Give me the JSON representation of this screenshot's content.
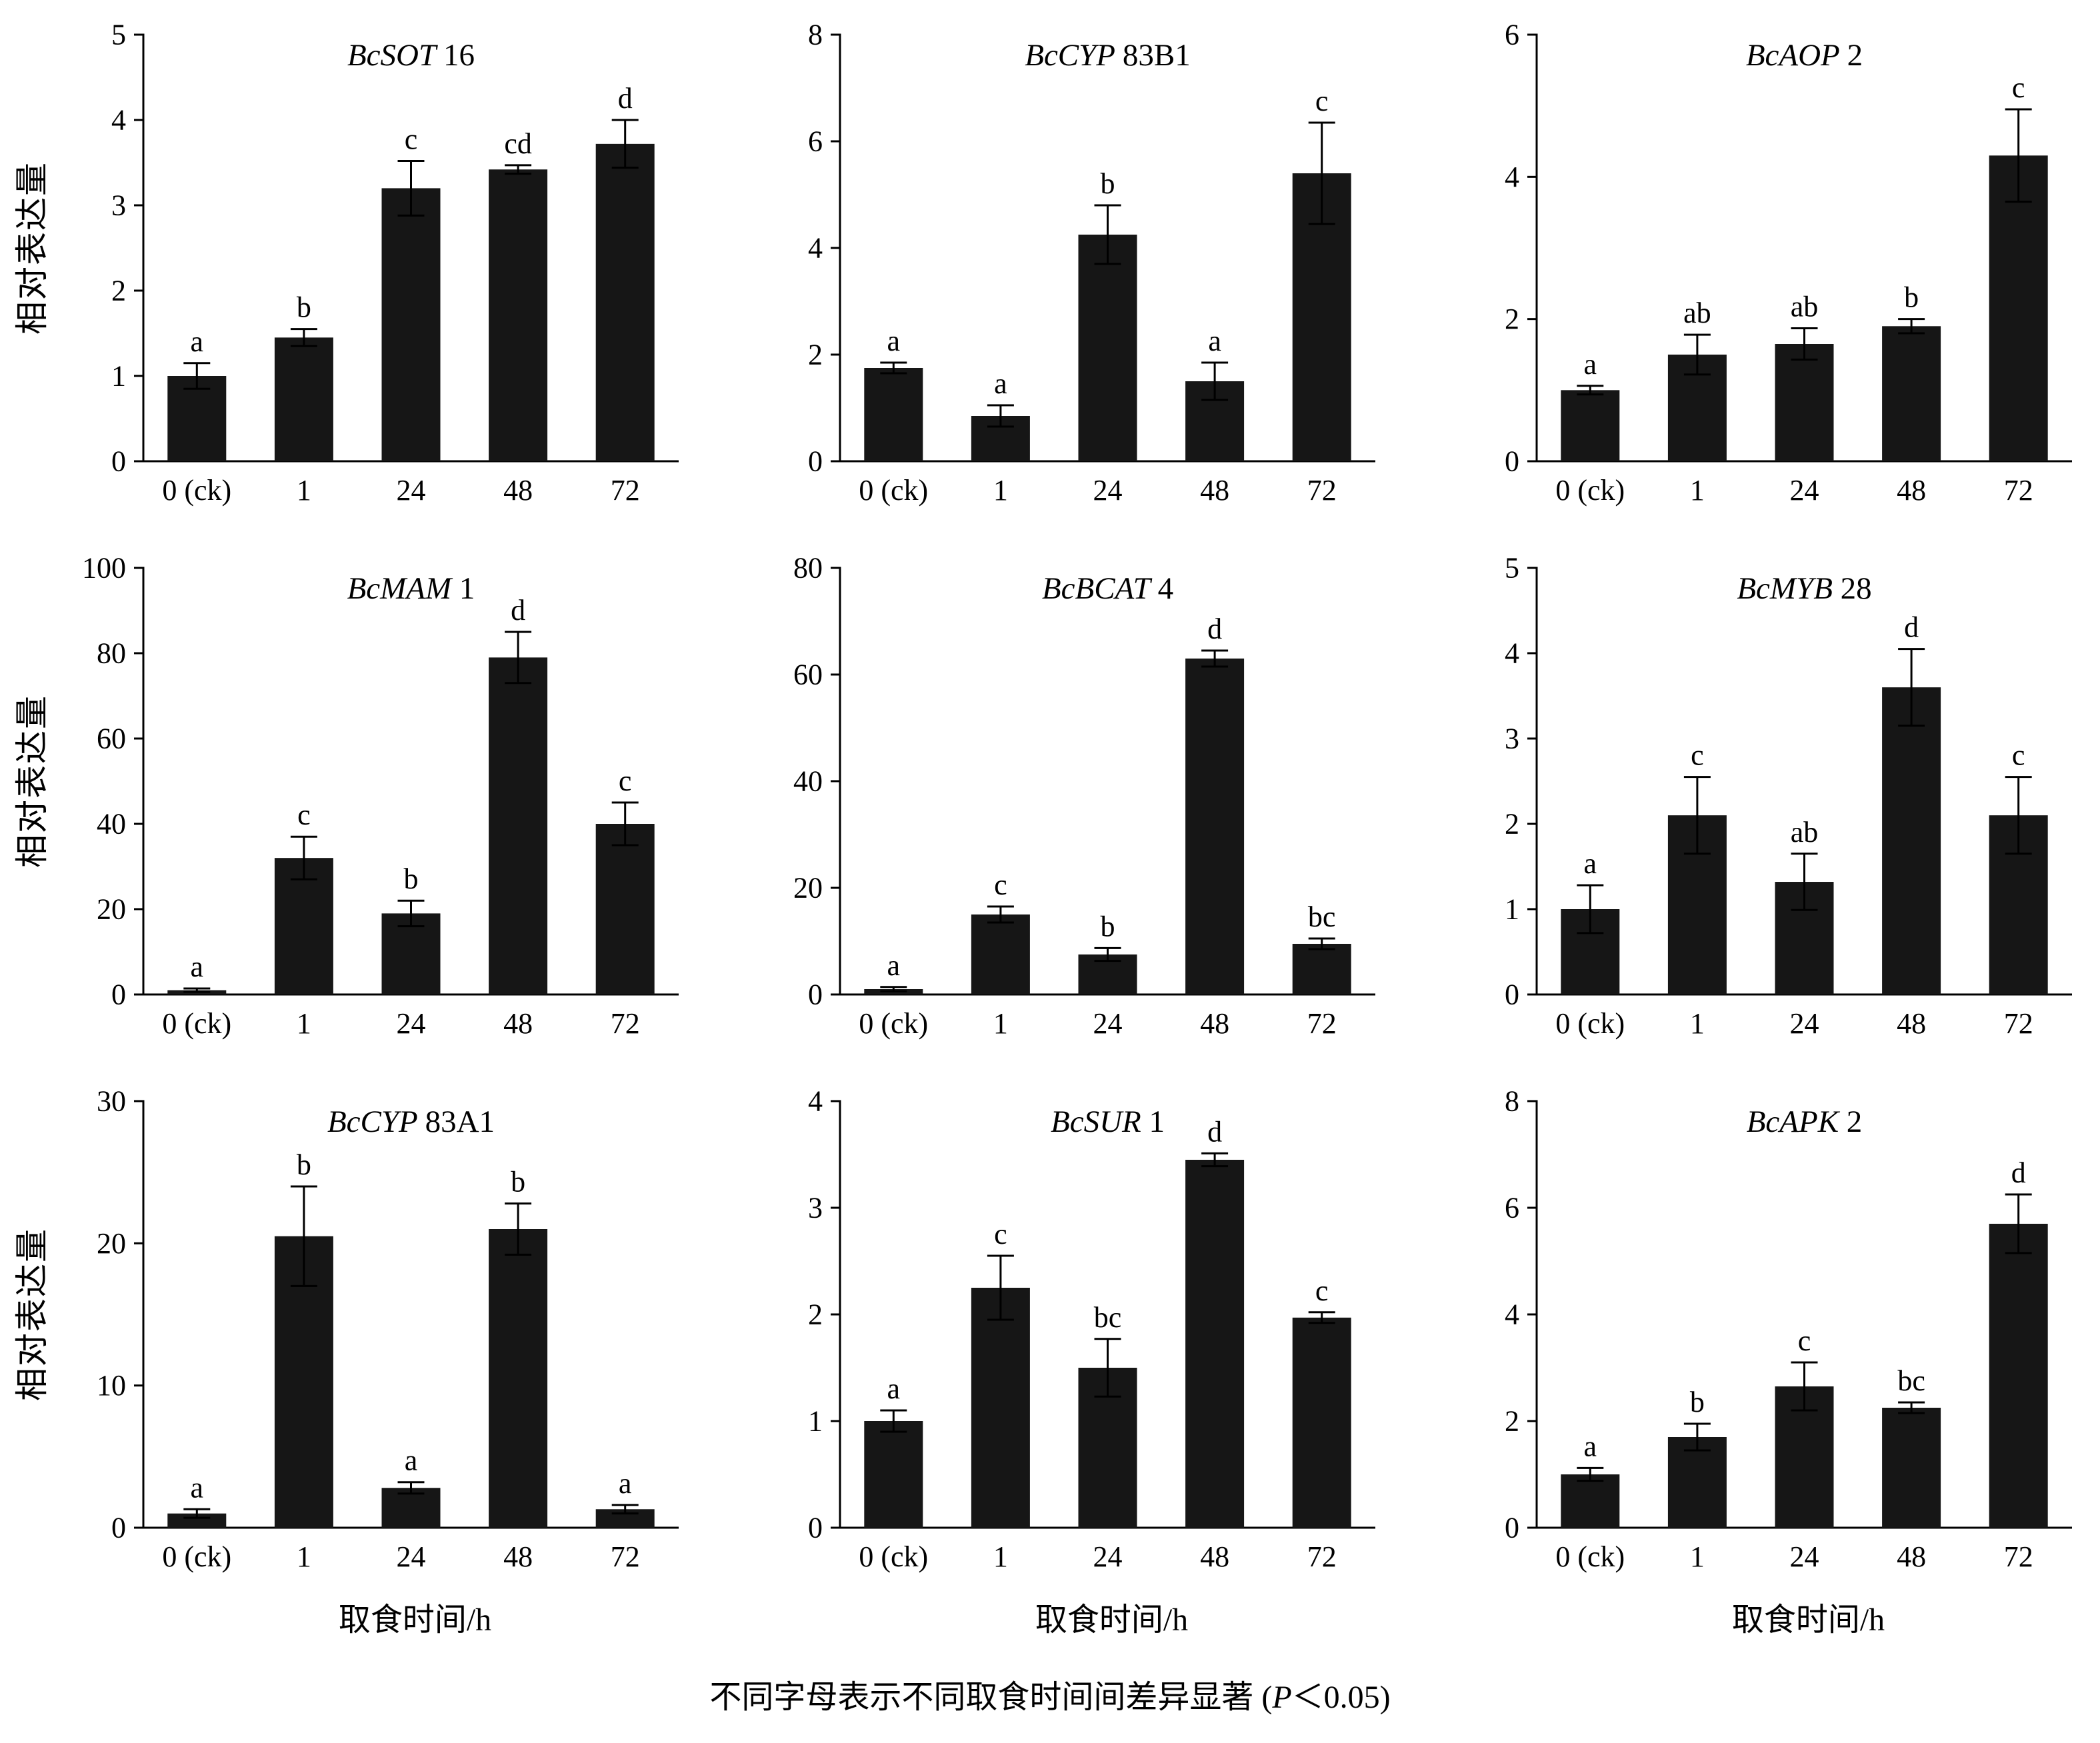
{
  "figure": {
    "ylabel": "相对表达量",
    "xlabel": "取食时间/h",
    "caption": {
      "prefix": "不同字母表示不同取食时间间差异显著 (",
      "p": "P",
      "suffix": "＜0.05)"
    }
  },
  "chart_data": {
    "type": "bar",
    "categories": [
      "0 (ck)",
      "1",
      "24",
      "48",
      "72"
    ],
    "bar_color": "#161616",
    "grid": "off",
    "error_bars": true,
    "shared_xlabel": "取食时间/h",
    "shared_ylabel": "相对表达量",
    "charts": [
      {
        "title": "BcSOT 16",
        "gene": "BcSOT",
        "num": "16",
        "ylim": [
          0,
          5
        ],
        "yticks": [
          0,
          1,
          2,
          3,
          4,
          5
        ],
        "values": [
          1.0,
          1.45,
          3.2,
          3.42,
          3.72
        ],
        "errors": [
          0.15,
          0.1,
          0.32,
          0.05,
          0.28
        ],
        "letters": [
          "a",
          "b",
          "c",
          "cd",
          "d"
        ]
      },
      {
        "title": "BcCYP 83B1",
        "gene": "BcCYP",
        "num": "83B1",
        "ylim": [
          0,
          8
        ],
        "yticks": [
          0,
          2,
          4,
          6,
          8
        ],
        "values": [
          1.75,
          0.85,
          4.25,
          1.5,
          5.4
        ],
        "errors": [
          0.1,
          0.2,
          0.55,
          0.35,
          0.95
        ],
        "letters": [
          "a",
          "a",
          "b",
          "a",
          "c"
        ]
      },
      {
        "title": "BcAOP 2",
        "gene": "BcAOP",
        "num": "2",
        "ylim": [
          0,
          6
        ],
        "yticks": [
          0,
          2,
          4,
          6
        ],
        "values": [
          1.0,
          1.5,
          1.65,
          1.9,
          4.3
        ],
        "errors": [
          0.06,
          0.28,
          0.22,
          0.1,
          0.65
        ],
        "letters": [
          "a",
          "ab",
          "ab",
          "b",
          "c"
        ]
      },
      {
        "title": "BcMAM 1",
        "gene": "BcMAM",
        "num": "1",
        "ylim": [
          0,
          100
        ],
        "yticks": [
          0,
          20,
          40,
          60,
          80,
          100
        ],
        "values": [
          1,
          32,
          19,
          79,
          40
        ],
        "errors": [
          0.4,
          5,
          3,
          6,
          5
        ],
        "letters": [
          "a",
          "c",
          "b",
          "d",
          "c"
        ]
      },
      {
        "title": "BcBCAT 4",
        "gene": "BcBCAT",
        "num": "4",
        "ylim": [
          0,
          80
        ],
        "yticks": [
          0,
          20,
          40,
          60,
          80
        ],
        "values": [
          1,
          15,
          7.5,
          63,
          9.5
        ],
        "errors": [
          0.4,
          1.5,
          1.2,
          1.5,
          1.0
        ],
        "letters": [
          "a",
          "c",
          "b",
          "d",
          "bc"
        ]
      },
      {
        "title": "BcMYB 28",
        "gene": "BcMYB",
        "num": "28",
        "ylim": [
          0,
          5
        ],
        "yticks": [
          0,
          1,
          2,
          3,
          4,
          5
        ],
        "values": [
          1.0,
          2.1,
          1.32,
          3.6,
          2.1
        ],
        "errors": [
          0.28,
          0.45,
          0.33,
          0.45,
          0.45
        ],
        "letters": [
          "a",
          "c",
          "ab",
          "d",
          "c"
        ]
      },
      {
        "title": "BcCYP 83A1",
        "gene": "BcCYP",
        "num": "83A1",
        "ylim": [
          0,
          30
        ],
        "yticks": [
          0,
          10,
          20,
          30
        ],
        "values": [
          1,
          20.5,
          2.8,
          21,
          1.3
        ],
        "errors": [
          0.3,
          3.5,
          0.4,
          1.8,
          0.3
        ],
        "letters": [
          "a",
          "b",
          "a",
          "b",
          "a"
        ]
      },
      {
        "title": "BcSUR 1",
        "gene": "BcSUR",
        "num": "1",
        "ylim": [
          0,
          4
        ],
        "yticks": [
          0,
          1,
          2,
          3,
          4
        ],
        "values": [
          1.0,
          2.25,
          1.5,
          3.45,
          1.97
        ],
        "errors": [
          0.1,
          0.3,
          0.27,
          0.06,
          0.05
        ],
        "letters": [
          "a",
          "c",
          "bc",
          "d",
          "c"
        ]
      },
      {
        "title": "BcAPK 2",
        "gene": "BcAPK",
        "num": "2",
        "ylim": [
          0,
          8
        ],
        "yticks": [
          0,
          2,
          4,
          6,
          8
        ],
        "values": [
          1.0,
          1.7,
          2.65,
          2.25,
          5.7
        ],
        "errors": [
          0.12,
          0.25,
          0.45,
          0.1,
          0.55
        ],
        "letters": [
          "a",
          "b",
          "c",
          "bc",
          "d"
        ]
      }
    ]
  }
}
